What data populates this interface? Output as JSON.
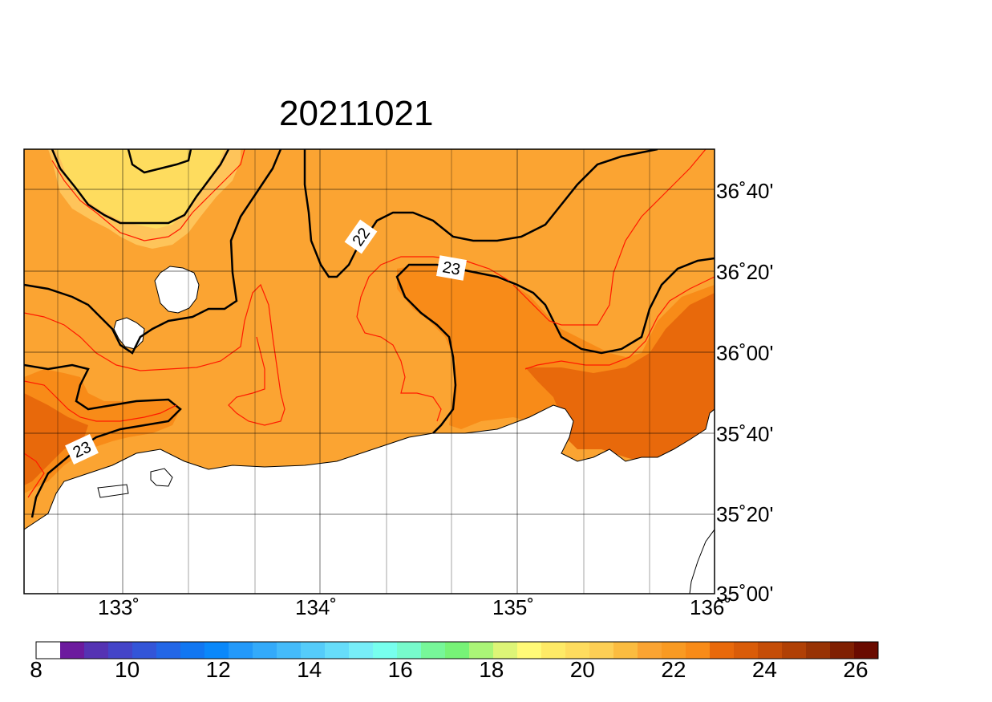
{
  "title": "20211021",
  "map": {
    "lon_range": [
      132.5,
      136.0
    ],
    "lat_range": [
      35.0,
      36.8333
    ],
    "lon_tick_labels": [
      "133˚",
      "134˚",
      "135˚",
      "136˚"
    ],
    "lat_tick_labels": [
      "36˚40'",
      "36˚20'",
      "36˚00'",
      "35˚40'",
      "35˚20'",
      "35˚00'"
    ],
    "contour_labels": [
      "22",
      "23",
      "23"
    ],
    "colors": {
      "land": "#ffffff",
      "level_21": "#fec45a",
      "level_22": "#fba432",
      "level_23": "#f88b18",
      "level_24": "#e8690b",
      "thin_contour": "#ff1a00",
      "thick_contour": "#000000"
    }
  },
  "colorbar": {
    "tick_labels": [
      "8",
      "10",
      "12",
      "14",
      "16",
      "18",
      "20",
      "22",
      "24",
      "26"
    ],
    "colors": [
      "#ffffff",
      "#6c1a9e",
      "#5533b3",
      "#4444c8",
      "#3355d8",
      "#2266e6",
      "#1177f2",
      "#0a88fa",
      "#2299fa",
      "#33aafa",
      "#44bbfa",
      "#55ccfa",
      "#66ddfa",
      "#77eef8",
      "#77ffee",
      "#77fbcc",
      "#77f799",
      "#77f377",
      "#aaf577",
      "#ddf577",
      "#fffa77",
      "#feea66",
      "#fedc5e",
      "#fdcf55",
      "#fbbc40",
      "#fba432",
      "#f99a22",
      "#f88b18",
      "#e8690b",
      "#d95c09",
      "#c54d07",
      "#b04005",
      "#983304",
      "#802002",
      "#6a0b00"
    ],
    "color_levels": 35
  }
}
